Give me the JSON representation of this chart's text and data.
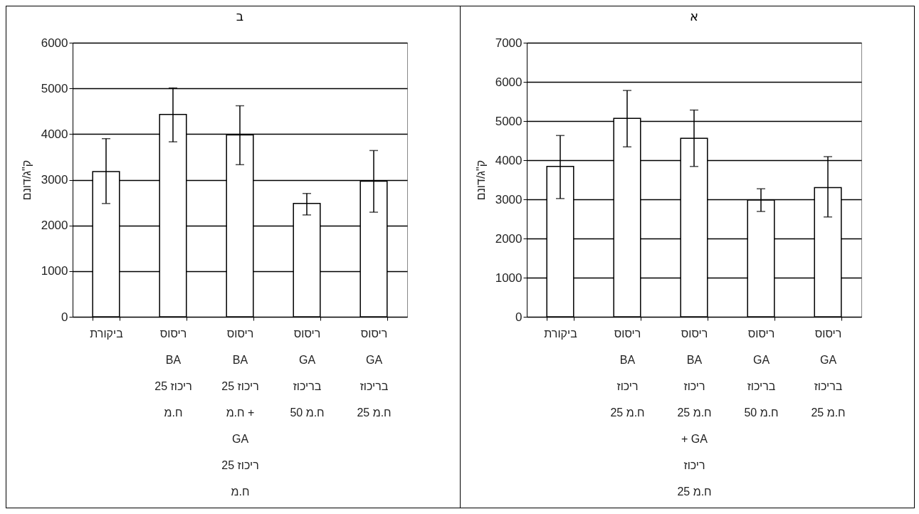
{
  "chart_data": [
    {
      "type": "bar",
      "title": "ב",
      "ylabel": "ק\"ג/דונם",
      "categories": [
        "ביקורת",
        "ריסוס\nBA\nריכוז 25\nח.מ",
        "ריסוס\nBA\nריכוז 25\nח.מ +\nGA\nריכוז 25\nח.מ",
        "ריסוס\nGA\nבריכוז\n50 ח.מ",
        "ריסוס\nGA\nבריכוז\n25 ח.מ"
      ],
      "series": [
        {
          "color": "#ffffff",
          "values": [
            3180,
            4430,
            3980,
            2480,
            2970
          ],
          "errors": [
            [
              2480,
              3900
            ],
            [
              3830,
              5010
            ],
            [
              3330,
              4620
            ],
            [
              2230,
              2700
            ],
            [
              2290,
              3640
            ]
          ]
        }
      ],
      "ylim": [
        0,
        6000
      ],
      "yticks": [
        0,
        1000,
        2000,
        3000,
        4000,
        5000,
        6000
      ],
      "grid": "y"
    },
    {
      "type": "bar",
      "title": "א",
      "ylabel": "ק\"ג/דונם",
      "categories": [
        "ביקורת",
        "ריסוס\nBA\nריכוז\n25 ח.מ",
        "ריסוס\nBA\nריכוז\n25 ח.מ\n+ GA\nריכוז\n25 ח.מ",
        "ריסוס\nGA\nבריכוז\n50 ח.מ",
        "ריסוס\nGA\nבריכוז\n25 ח.מ"
      ],
      "series": [
        {
          "color": "#ffffff",
          "values": [
            3840,
            5070,
            4560,
            2980,
            3300
          ],
          "errors": [
            [
              3020,
              4630
            ],
            [
              4340,
              5780
            ],
            [
              3840,
              5280
            ],
            [
              2690,
              3270
            ],
            [
              2550,
              4090
            ]
          ]
        }
      ],
      "ylim": [
        0,
        7000
      ],
      "yticks": [
        0,
        1000,
        2000,
        3000,
        4000,
        5000,
        6000,
        7000
      ],
      "grid": "y"
    }
  ]
}
